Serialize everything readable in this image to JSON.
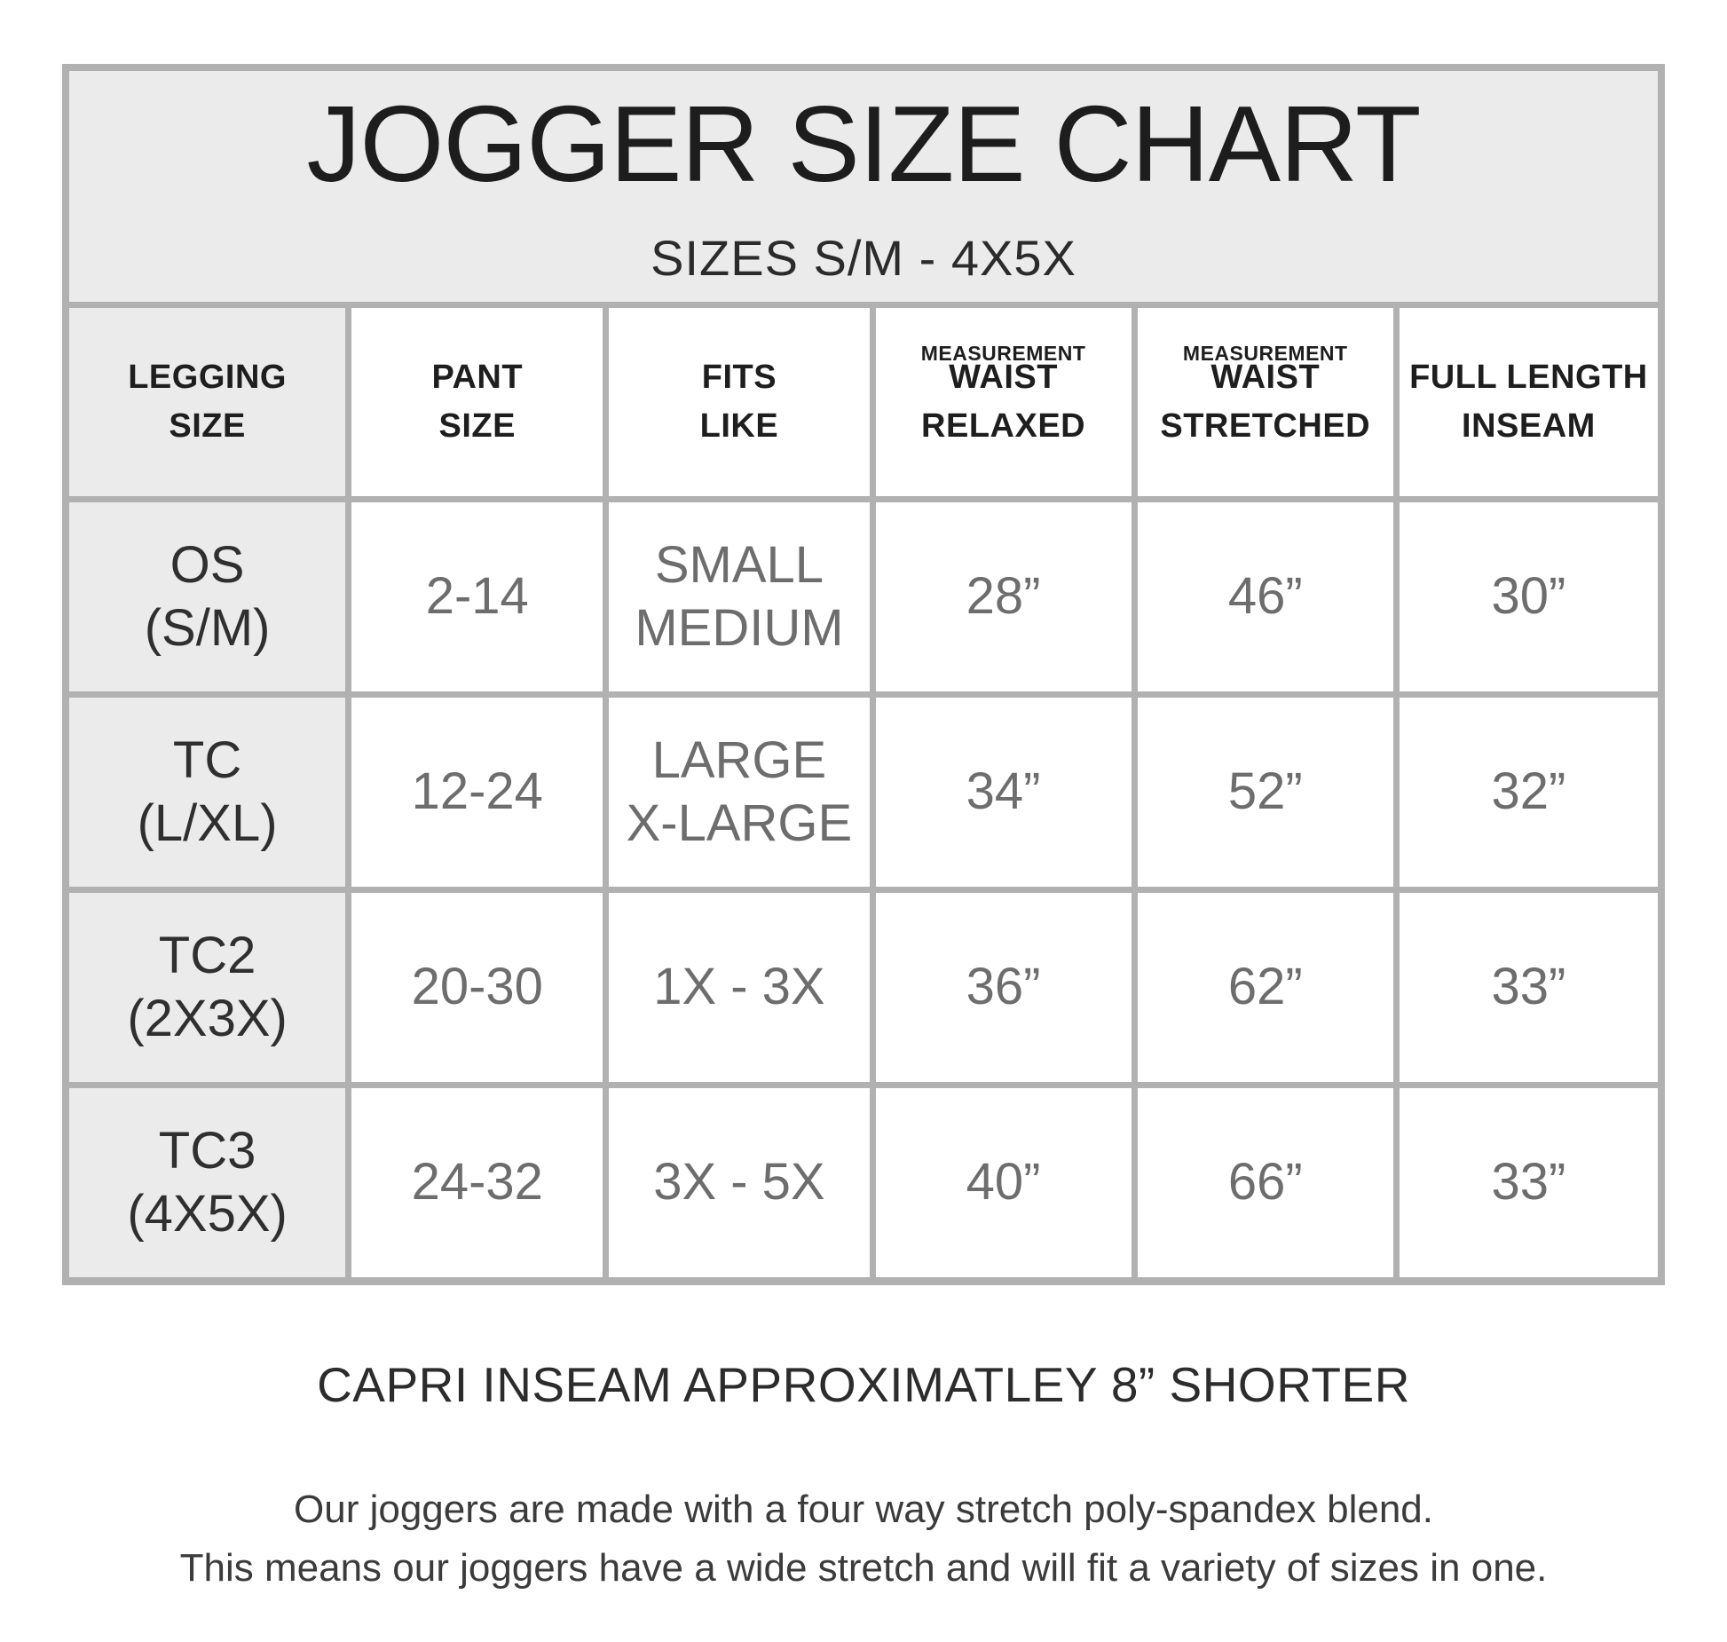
{
  "colors": {
    "page_bg": "#ffffff",
    "panel_bg": "#ebebeb",
    "grid_line": "#b1b1b1",
    "heading_text": "#1e1e1e",
    "data_text": "#6d6d6d",
    "row_label_text": "#2f2f2f"
  },
  "header": {
    "title": "JOGGER SIZE CHART",
    "subtitle": "SIZES S/M - 4X5X"
  },
  "table": {
    "columns": [
      {
        "label": "LEGGING\nSIZE"
      },
      {
        "label": "PANT\nSIZE"
      },
      {
        "label": "FITS\nLIKE"
      },
      {
        "superlabel": "MEASUREMENT",
        "label": "WAIST\nRELAXED"
      },
      {
        "superlabel": "MEASUREMENT",
        "label": "WAIST\nSTRETCHED"
      },
      {
        "label": "FULL LENGTH\nINSEAM"
      }
    ],
    "rows": [
      {
        "cells": [
          "OS\n(S/M)",
          "2-14",
          "SMALL\nMEDIUM",
          "28”",
          "46”",
          "30”"
        ]
      },
      {
        "cells": [
          "TC\n(L/XL)",
          "12-24",
          "LARGE\nX-LARGE",
          "34”",
          "52”",
          "32”"
        ]
      },
      {
        "cells": [
          "TC2\n(2X3X)",
          "20-30",
          "1X - 3X",
          "36”",
          "62”",
          "33”"
        ]
      },
      {
        "cells": [
          "TC3\n(4X5X)",
          "24-32",
          "3X - 5X",
          "40”",
          "66”",
          "33”"
        ]
      }
    ]
  },
  "footer": {
    "capri_note": "CAPRI INSEAM APPROXIMATLEY 8” SHORTER",
    "desc_line1": "Our joggers are made with a four way stretch poly-spandex blend.",
    "desc_line2": "This means our joggers have a wide stretch and will fit a variety of sizes in one."
  },
  "chart_data": {
    "type": "table",
    "title": "JOGGER SIZE CHART",
    "subtitle": "SIZES S/M - 4X5X",
    "columns": [
      "LEGGING SIZE",
      "PANT SIZE",
      "FITS LIKE",
      "MEASUREMENT WAIST RELAXED",
      "MEASUREMENT WAIST STRETCHED",
      "FULL LENGTH INSEAM"
    ],
    "rows": [
      [
        "OS (S/M)",
        "2-14",
        "SMALL MEDIUM",
        "28”",
        "46”",
        "30”"
      ],
      [
        "TC (L/XL)",
        "12-24",
        "LARGE X-LARGE",
        "34”",
        "52”",
        "32”"
      ],
      [
        "TC2 (2X3X)",
        "20-30",
        "1X - 3X",
        "36”",
        "62”",
        "33”"
      ],
      [
        "TC3 (4X5X)",
        "24-32",
        "3X - 5X",
        "40”",
        "66”",
        "33”"
      ]
    ],
    "notes": [
      "CAPRI INSEAM APPROXIMATLEY 8” SHORTER",
      "Our joggers are made with a four way stretch poly-spandex blend.",
      "This means our joggers have a wide stretch and will fit a variety of sizes in one."
    ],
    "layout_hints": {
      "first_column_shaded": true,
      "title_band_shaded": true,
      "grid": true
    }
  }
}
